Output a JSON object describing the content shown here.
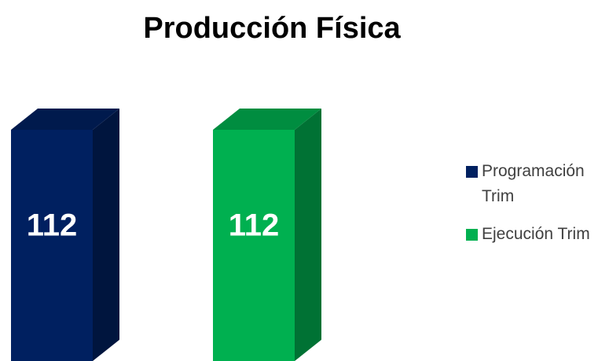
{
  "chart_data": {
    "type": "bar",
    "title": "Producción Física",
    "categories": [
      null
    ],
    "series": [
      {
        "name": "Programación Trim",
        "color": "#002060",
        "values": [
          112
        ]
      },
      {
        "name": "Ejecución Trim",
        "color": "#00b050",
        "values": [
          112
        ]
      }
    ],
    "legend": "right"
  }
}
